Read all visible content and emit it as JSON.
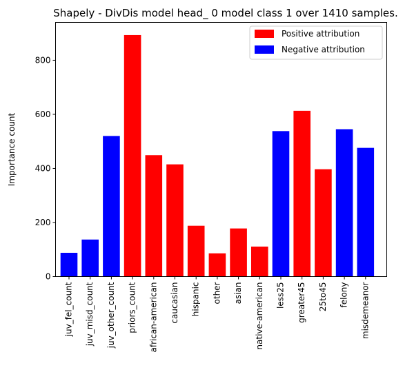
{
  "chart_data": {
    "type": "bar",
    "title": "Shapely - DivDis model head_ 0 model class 1 over 1410 samples.",
    "xlabel": "",
    "ylabel": "Importance count",
    "ylim": [
      0,
      940
    ],
    "yticks": [
      0,
      200,
      400,
      600,
      800
    ],
    "grid": false,
    "legend_position": "top-right",
    "colors": {
      "positive": "#ff0000",
      "negative": "#0000ff"
    },
    "legend": [
      {
        "name": "Positive attribution",
        "color": "#ff0000"
      },
      {
        "name": "Negative attribution",
        "color": "#0000ff"
      }
    ],
    "categories": [
      "juv_fel_count",
      "juv_misd_count",
      "juv_other_count",
      "priors_count",
      "african-american",
      "caucasian",
      "hispanic",
      "other",
      "asian",
      "native-american",
      "less25",
      "greater45",
      "25to45",
      "felony",
      "misdemeanor"
    ],
    "values": [
      88,
      137,
      520,
      893,
      449,
      415,
      188,
      86,
      178,
      111,
      538,
      613,
      397,
      545,
      476
    ],
    "attribution": [
      "negative",
      "negative",
      "negative",
      "positive",
      "positive",
      "positive",
      "positive",
      "positive",
      "positive",
      "positive",
      "negative",
      "positive",
      "positive",
      "negative",
      "negative"
    ]
  }
}
